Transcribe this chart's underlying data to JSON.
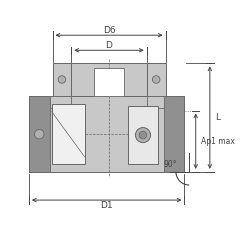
{
  "bg_color": "#ffffff",
  "line_color": "#666666",
  "dim_color": "#444444",
  "fill_light": "#c8c8c8",
  "fill_mid": "#b0b0b0",
  "fill_dark": "#909090",
  "fill_insert": "#e8e8e8",
  "fill_white": "#f0f0f0",
  "figsize": [
    2.4,
    2.4
  ],
  "dpi": 100,
  "labels": {
    "D6": "D6",
    "D": "D",
    "D1": "D1",
    "L": "L",
    "Ap1max": "Ap1 max",
    "angle": "90°"
  }
}
